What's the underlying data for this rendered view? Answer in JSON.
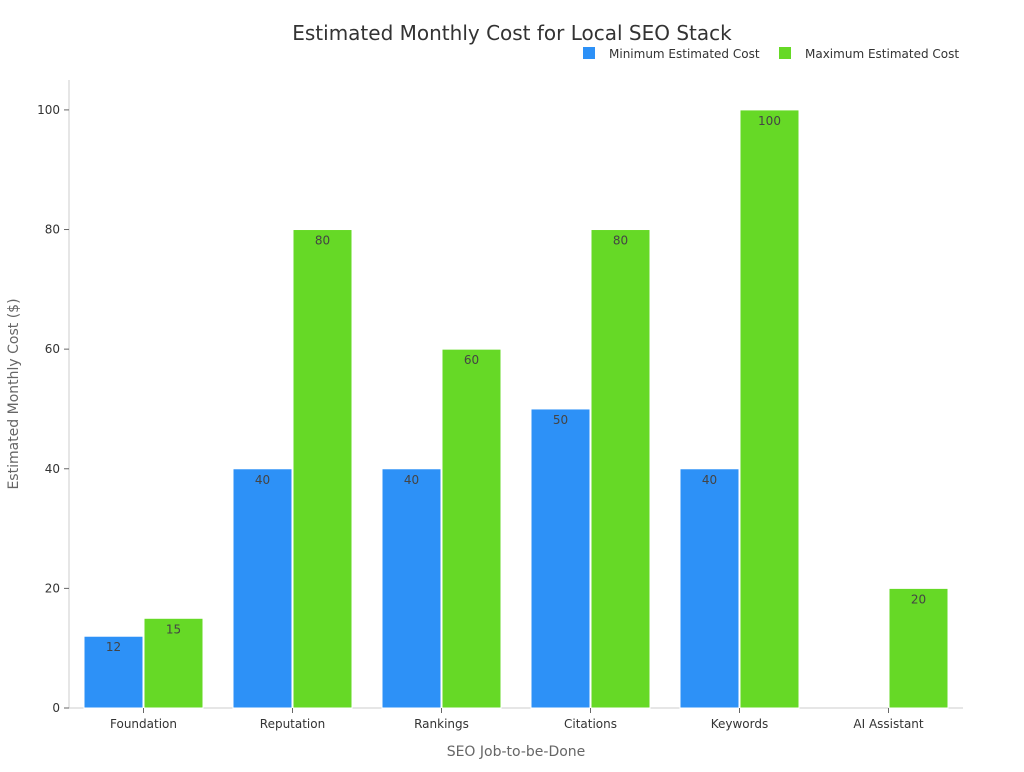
{
  "chart_data": {
    "type": "bar",
    "title": "Estimated Monthly Cost for Local SEO Stack",
    "xlabel": "SEO Job-to-be-Done",
    "ylabel": "Estimated Monthly Cost ($)",
    "categories": [
      "Foundation",
      "Reputation",
      "Rankings",
      "Citations",
      "Keywords",
      "AI Assistant"
    ],
    "series": [
      {
        "name": "Minimum Estimated Cost",
        "color": "#2d91f7",
        "values": [
          12,
          40,
          40,
          50,
          40,
          0
        ]
      },
      {
        "name": "Maximum Estimated Cost",
        "color": "#66d926",
        "values": [
          15,
          80,
          60,
          80,
          100,
          20
        ]
      }
    ],
    "ylim": [
      0,
      105
    ],
    "yticks": [
      0,
      20,
      40,
      60,
      80,
      100
    ],
    "grid": false,
    "legend": "top-right"
  }
}
